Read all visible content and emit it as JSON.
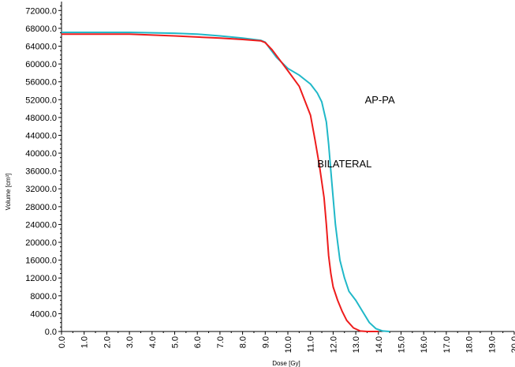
{
  "chart_data": {
    "type": "line",
    "xlabel": "Dose [Gy]",
    "ylabel": "Volume [cm³]",
    "xlim": [
      0,
      20
    ],
    "ylim": [
      0,
      74000
    ],
    "grid": false,
    "legend": "none",
    "x_ticks": [
      "0.0",
      "1.0",
      "2.0",
      "3.0",
      "4.0",
      "5.0",
      "6.0",
      "7.0",
      "8.0",
      "9.0",
      "10.0",
      "11.0",
      "12.0",
      "13.0",
      "14.0",
      "15.0",
      "16.0",
      "17.0",
      "18.0",
      "19.0",
      "20.0"
    ],
    "y_ticks": [
      "0.0",
      "4000.0",
      "8000.0",
      "12000.0",
      "16000.0",
      "20000.0",
      "24000.0",
      "28000.0",
      "32000.0",
      "36000.0",
      "40000.0",
      "44000.0",
      "48000.0",
      "52000.0",
      "56000.0",
      "60000.0",
      "64000.0",
      "68000.0",
      "72000.0"
    ],
    "series": [
      {
        "name": "AP-PA",
        "color": "#20b8c8",
        "points": [
          [
            0,
            67100
          ],
          [
            3,
            67100
          ],
          [
            5,
            66900
          ],
          [
            6,
            66700
          ],
          [
            7,
            66300
          ],
          [
            8,
            65800
          ],
          [
            8.8,
            65300
          ],
          [
            9,
            64900
          ],
          [
            9.2,
            63500
          ],
          [
            9.5,
            61500
          ],
          [
            10,
            59000
          ],
          [
            10.5,
            57500
          ],
          [
            11,
            55500
          ],
          [
            11.3,
            53500
          ],
          [
            11.5,
            51500
          ],
          [
            11.7,
            47000
          ],
          [
            11.8,
            42000
          ],
          [
            11.9,
            36000
          ],
          [
            12,
            30000
          ],
          [
            12.1,
            24000
          ],
          [
            12.2,
            20000
          ],
          [
            12.3,
            16000
          ],
          [
            12.5,
            12000
          ],
          [
            12.7,
            9000
          ],
          [
            13,
            7000
          ],
          [
            13.3,
            4500
          ],
          [
            13.6,
            2000
          ],
          [
            13.9,
            600
          ],
          [
            14.2,
            100
          ],
          [
            14.5,
            0
          ]
        ]
      },
      {
        "name": "BILATERAL",
        "color": "#ee1c1c",
        "points": [
          [
            0,
            66700
          ],
          [
            3,
            66700
          ],
          [
            5,
            66300
          ],
          [
            7,
            65800
          ],
          [
            8,
            65500
          ],
          [
            8.8,
            65200
          ],
          [
            9,
            64800
          ],
          [
            9.3,
            63200
          ],
          [
            9.6,
            61200
          ],
          [
            10,
            58500
          ],
          [
            10.5,
            55000
          ],
          [
            11,
            48500
          ],
          [
            11.2,
            43000
          ],
          [
            11.4,
            37000
          ],
          [
            11.6,
            30000
          ],
          [
            11.7,
            24000
          ],
          [
            11.8,
            17000
          ],
          [
            11.9,
            13000
          ],
          [
            12,
            10000
          ],
          [
            12.2,
            7000
          ],
          [
            12.4,
            4500
          ],
          [
            12.6,
            2500
          ],
          [
            12.9,
            800
          ],
          [
            13.2,
            100
          ],
          [
            13.5,
            0
          ],
          [
            14,
            0
          ]
        ]
      }
    ],
    "annotations": [
      {
        "text": "AP-PA",
        "x": 13.4,
        "y": 51200
      },
      {
        "text": "BILATERAL",
        "x": 11.3,
        "y": 36800
      }
    ]
  }
}
